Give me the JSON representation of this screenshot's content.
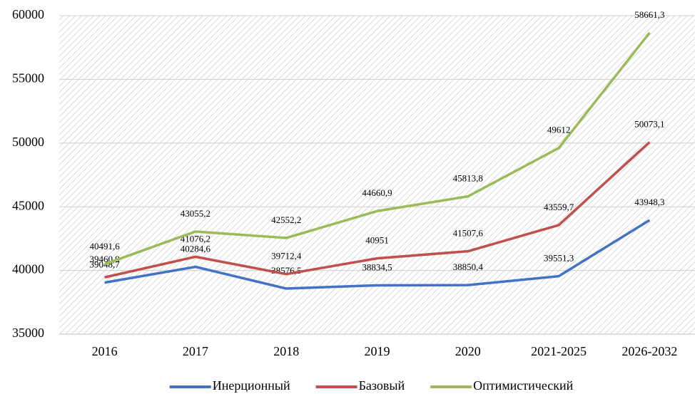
{
  "chart_data": {
    "type": "line",
    "categories": [
      "2016",
      "2017",
      "2018",
      "2019",
      "2020",
      "2021-2025",
      "2026-2032"
    ],
    "series": [
      {
        "name": "Инерционный",
        "color": "#4472c4",
        "values": [
          39048.7,
          40284.6,
          38576.5,
          38834.5,
          38850.4,
          39551.3,
          43948.3
        ],
        "value_labels": [
          "39048,7",
          "40284,6",
          "38576,5",
          "38834,5",
          "38850,4",
          "39551,3",
          "43948,3"
        ]
      },
      {
        "name": "Базовый",
        "color": "#c0504d",
        "values": [
          39460.9,
          41076.2,
          39712.4,
          40951,
          41507.6,
          43559.7,
          50073.1
        ],
        "value_labels": [
          "39460,9",
          "41076,2",
          "39712,4",
          "40951",
          "41507,6",
          "43559,7",
          "50073,1"
        ]
      },
      {
        "name": "Оптимистический",
        "color": "#9bbb59",
        "values": [
          40491.6,
          43055.2,
          42552.2,
          44660.9,
          45813.8,
          49612,
          58661.3
        ],
        "value_labels": [
          "40491,6",
          "43055,2",
          "42552,2",
          "44660,9",
          "45813,8",
          "49612",
          "58661,3"
        ]
      }
    ],
    "ylim": [
      35000,
      60000
    ],
    "yticks": [
      35000,
      40000,
      45000,
      50000,
      55000,
      60000
    ],
    "grid": true,
    "legend": "bottom"
  }
}
